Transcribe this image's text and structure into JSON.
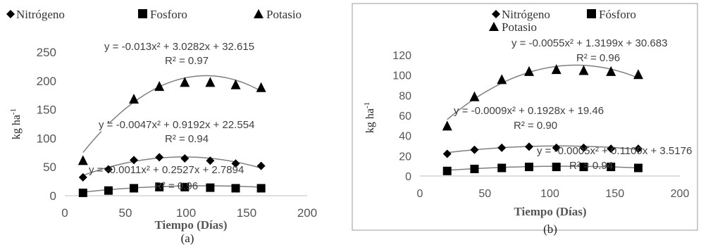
{
  "chart_data": [
    {
      "type": "scatter",
      "caption": "(a)",
      "xlabel": "Tiempo (Días)",
      "ylabel": "kg ha",
      "ylabel_superscript": "-1",
      "xlim": [
        0,
        200
      ],
      "ylim": [
        0,
        250
      ],
      "xticks": [
        "0",
        "50",
        "100",
        "150",
        "200"
      ],
      "yticks": [
        "0",
        "50",
        "100",
        "150",
        "200",
        "250"
      ],
      "grid": false,
      "legend": "top",
      "series": [
        {
          "name": "Nitrógeno",
          "marker": "diamond",
          "x": [
            15,
            36,
            57,
            78,
            99,
            120,
            141,
            162
          ],
          "y": [
            32,
            46,
            62,
            67,
            65,
            61,
            56,
            52
          ],
          "trend": {
            "a": -0.0047,
            "b": 0.9192,
            "c": 22.554
          },
          "equation": "y = -0.0047x² + 0.9192x + 22.554",
          "r2": "R² = 0.94"
        },
        {
          "name": "Fosforo",
          "marker": "square",
          "x": [
            15,
            36,
            57,
            78,
            99,
            120,
            141,
            162
          ],
          "y": [
            5,
            9,
            13,
            15,
            15,
            14,
            13,
            13
          ],
          "trend": {
            "a": -0.0011,
            "b": 0.2527,
            "c": 2.7894
          },
          "equation": "y = -0.0011x² + 0.2527x + 2.7894",
          "r2": "R² = 0.96"
        },
        {
          "name": "Potasio",
          "marker": "triangle",
          "x": [
            15,
            36,
            57,
            78,
            99,
            120,
            141,
            162
          ],
          "y": [
            62,
            122,
            169,
            191,
            198,
            198,
            194,
            189
          ],
          "trend": {
            "a": -0.013,
            "b": 3.0282,
            "c": 32.615
          },
          "equation": "y = -0.013x² + 3.0282x + 32.615",
          "r2": "R² = 0.97"
        }
      ]
    },
    {
      "type": "scatter",
      "caption": "(b)",
      "xlabel": "Tiempo (Días)",
      "ylabel": "kg ha",
      "ylabel_superscript": "-1",
      "xlim": [
        0,
        200
      ],
      "ylim": [
        0,
        120
      ],
      "xticks": [
        "0",
        "50",
        "100",
        "150",
        "200"
      ],
      "yticks": [
        "0",
        "20",
        "40",
        "60",
        "80",
        "100",
        "120"
      ],
      "grid": false,
      "legend": "top",
      "series": [
        {
          "name": "Nitrógeno",
          "marker": "diamond",
          "x": [
            21,
            42,
            63,
            84,
            105,
            126,
            147,
            168
          ],
          "y": [
            22,
            26,
            28,
            29,
            28,
            28,
            27,
            27
          ],
          "trend": {
            "a": -0.0009,
            "b": 0.1928,
            "c": 19.46
          },
          "equation": "y = -0.0009x² + 0.1928x + 19.46",
          "r2": "R² = 0.90"
        },
        {
          "name": "Fósforo",
          "marker": "square",
          "x": [
            21,
            42,
            63,
            84,
            105,
            126,
            147,
            168
          ],
          "y": [
            5,
            7,
            8,
            9,
            9,
            9,
            9,
            8
          ],
          "trend": {
            "a": -0.0005,
            "b": 0.1109,
            "c": 3.5176
          },
          "equation": "y = -0.0005x² + 0.1109x + 3.5176",
          "r2": "R² = 0.94"
        },
        {
          "name": "Potasio",
          "marker": "triangle",
          "x": [
            21,
            42,
            63,
            84,
            105,
            126,
            147,
            168
          ],
          "y": [
            50,
            79,
            96,
            104,
            106,
            105,
            104,
            101
          ],
          "trend": {
            "a": -0.0055,
            "b": 1.3199,
            "c": 30.683
          },
          "equation": "y = -0.0055x² + 1.3199x + 30.683",
          "r2": "R² = 0.96"
        }
      ]
    }
  ]
}
